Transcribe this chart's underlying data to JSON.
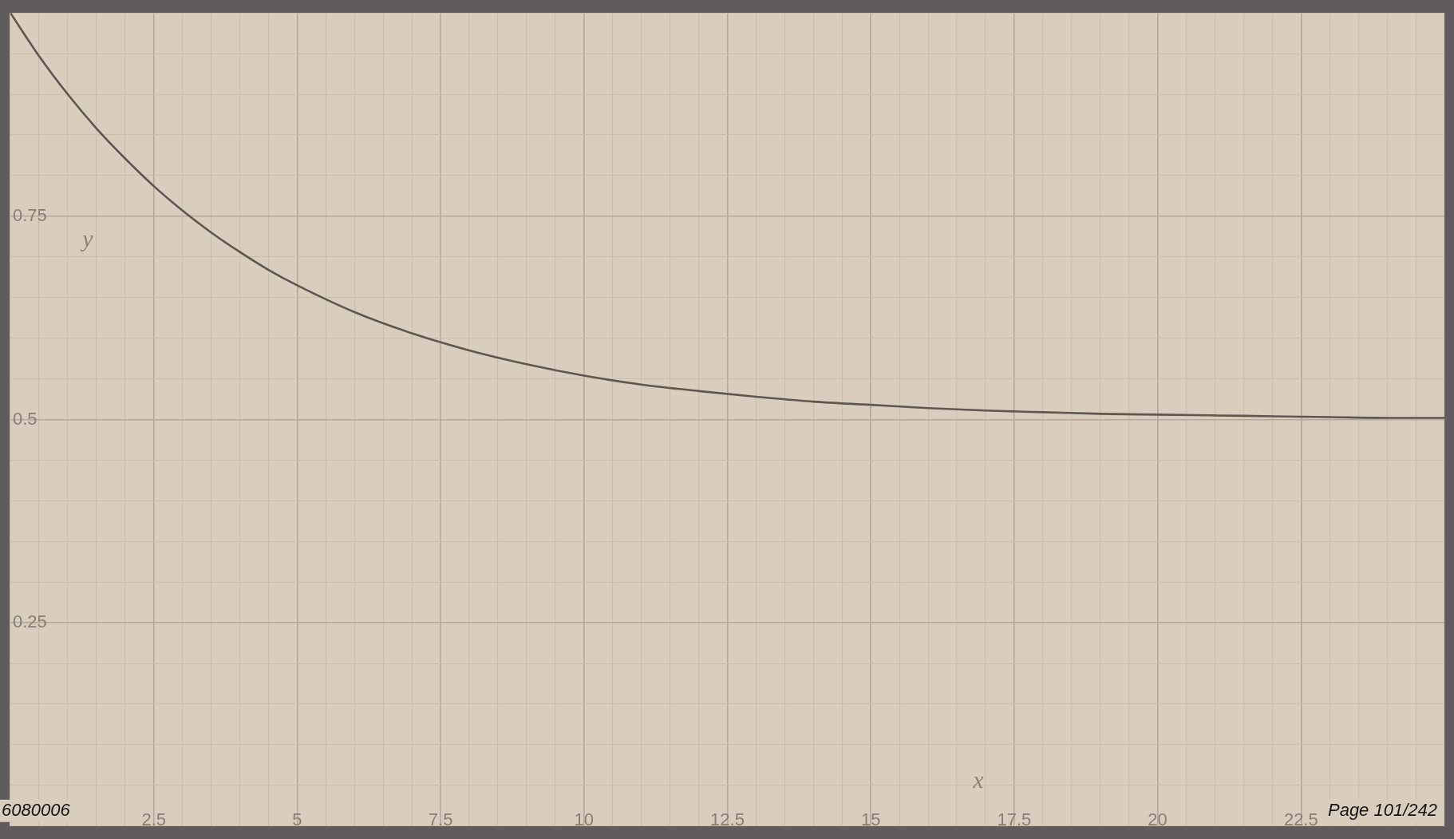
{
  "chart_data": {
    "type": "line",
    "xlabel": "x",
    "ylabel": "y",
    "x": [
      0,
      0.5,
      1,
      1.5,
      2,
      2.5,
      3,
      3.5,
      4,
      4.5,
      5,
      6,
      7,
      8,
      9,
      10,
      11,
      12,
      13,
      14,
      15,
      16,
      17,
      18,
      19,
      20,
      21,
      22,
      23,
      24,
      25
    ],
    "series": [
      {
        "color": "#5d5750",
        "values": [
          1.0,
          0.947,
          0.9,
          0.858,
          0.821,
          0.787,
          0.757,
          0.73,
          0.706,
          0.684,
          0.665,
          0.632,
          0.606,
          0.585,
          0.568,
          0.554,
          0.543,
          0.535,
          0.528,
          0.522,
          0.518,
          0.514,
          0.511,
          0.509,
          0.507,
          0.506,
          0.505,
          0.504,
          0.503,
          0.502,
          0.502
        ]
      }
    ],
    "xlim": [
      0,
      25
    ],
    "ylim": [
      0,
      1
    ],
    "xticks": [
      {
        "value": 0,
        "label": null
      },
      {
        "value": 0.5,
        "label": null
      },
      {
        "value": 1,
        "label": null
      },
      {
        "value": 1.5,
        "label": null
      },
      {
        "value": 2,
        "label": null
      },
      2.5,
      {
        "value": 3,
        "label": null
      },
      {
        "value": 3.5,
        "label": null
      },
      {
        "value": 4,
        "label": null
      },
      {
        "value": 4.5,
        "label": null
      },
      5,
      {
        "value": 5.5,
        "label": null
      },
      {
        "value": 6,
        "label": null
      },
      {
        "value": 6.5,
        "label": null
      },
      {
        "value": 7,
        "label": null
      },
      7.5,
      {
        "value": 8,
        "label": null
      },
      {
        "value": 8.5,
        "label": null
      },
      {
        "value": 9,
        "label": null
      },
      {
        "value": 9.5,
        "label": null
      },
      10,
      {
        "value": 10.5,
        "label": null
      },
      {
        "value": 11,
        "label": null
      },
      {
        "value": 11.5,
        "label": null
      },
      {
        "value": 12,
        "label": null
      },
      12.5,
      {
        "value": 13,
        "label": null
      },
      {
        "value": 13.5,
        "label": null
      },
      {
        "value": 14,
        "label": null
      },
      {
        "value": 14.5,
        "label": null
      },
      15,
      {
        "value": 15.5,
        "label": null
      },
      {
        "value": 16,
        "label": null
      },
      {
        "value": 16.5,
        "label": null
      },
      {
        "value": 17,
        "label": null
      },
      17.5,
      {
        "value": 18,
        "label": null
      },
      {
        "value": 18.5,
        "label": null
      },
      {
        "value": 19,
        "label": null
      },
      {
        "value": 19.5,
        "label": null
      },
      20,
      {
        "value": 20.5,
        "label": null
      },
      {
        "value": 21,
        "label": null
      },
      {
        "value": 21.5,
        "label": null
      },
      {
        "value": 22,
        "label": null
      },
      22.5,
      {
        "value": 23,
        "label": null
      },
      {
        "value": 23.5,
        "label": null
      },
      {
        "value": 24,
        "label": null
      },
      {
        "value": 24.5,
        "label": null
      },
      {
        "value": 25,
        "label": null
      }
    ],
    "yticks": [
      {
        "value": 0,
        "label": null
      },
      {
        "value": 0.05,
        "label": null
      },
      {
        "value": 0.1,
        "label": null
      },
      {
        "value": 0.15,
        "label": null
      },
      {
        "value": 0.2,
        "label": null
      },
      0.25,
      {
        "value": 0.3,
        "label": null
      },
      {
        "value": 0.35,
        "label": null
      },
      {
        "value": 0.4,
        "label": null
      },
      {
        "value": 0.45,
        "label": null
      },
      0.5,
      {
        "value": 0.55,
        "label": null
      },
      {
        "value": 0.6,
        "label": null
      },
      {
        "value": 0.65,
        "label": null
      },
      {
        "value": 0.7,
        "label": null
      },
      0.75,
      {
        "value": 0.8,
        "label": null
      },
      {
        "value": 0.85,
        "label": null
      },
      {
        "value": 0.9,
        "label": null
      },
      {
        "value": 0.95,
        "label": null
      },
      {
        "value": 1,
        "label": null
      }
    ],
    "grid": true,
    "marker": "none",
    "line_style": "solid",
    "annotations": [
      "6080006",
      "Page 101/242"
    ]
  }
}
